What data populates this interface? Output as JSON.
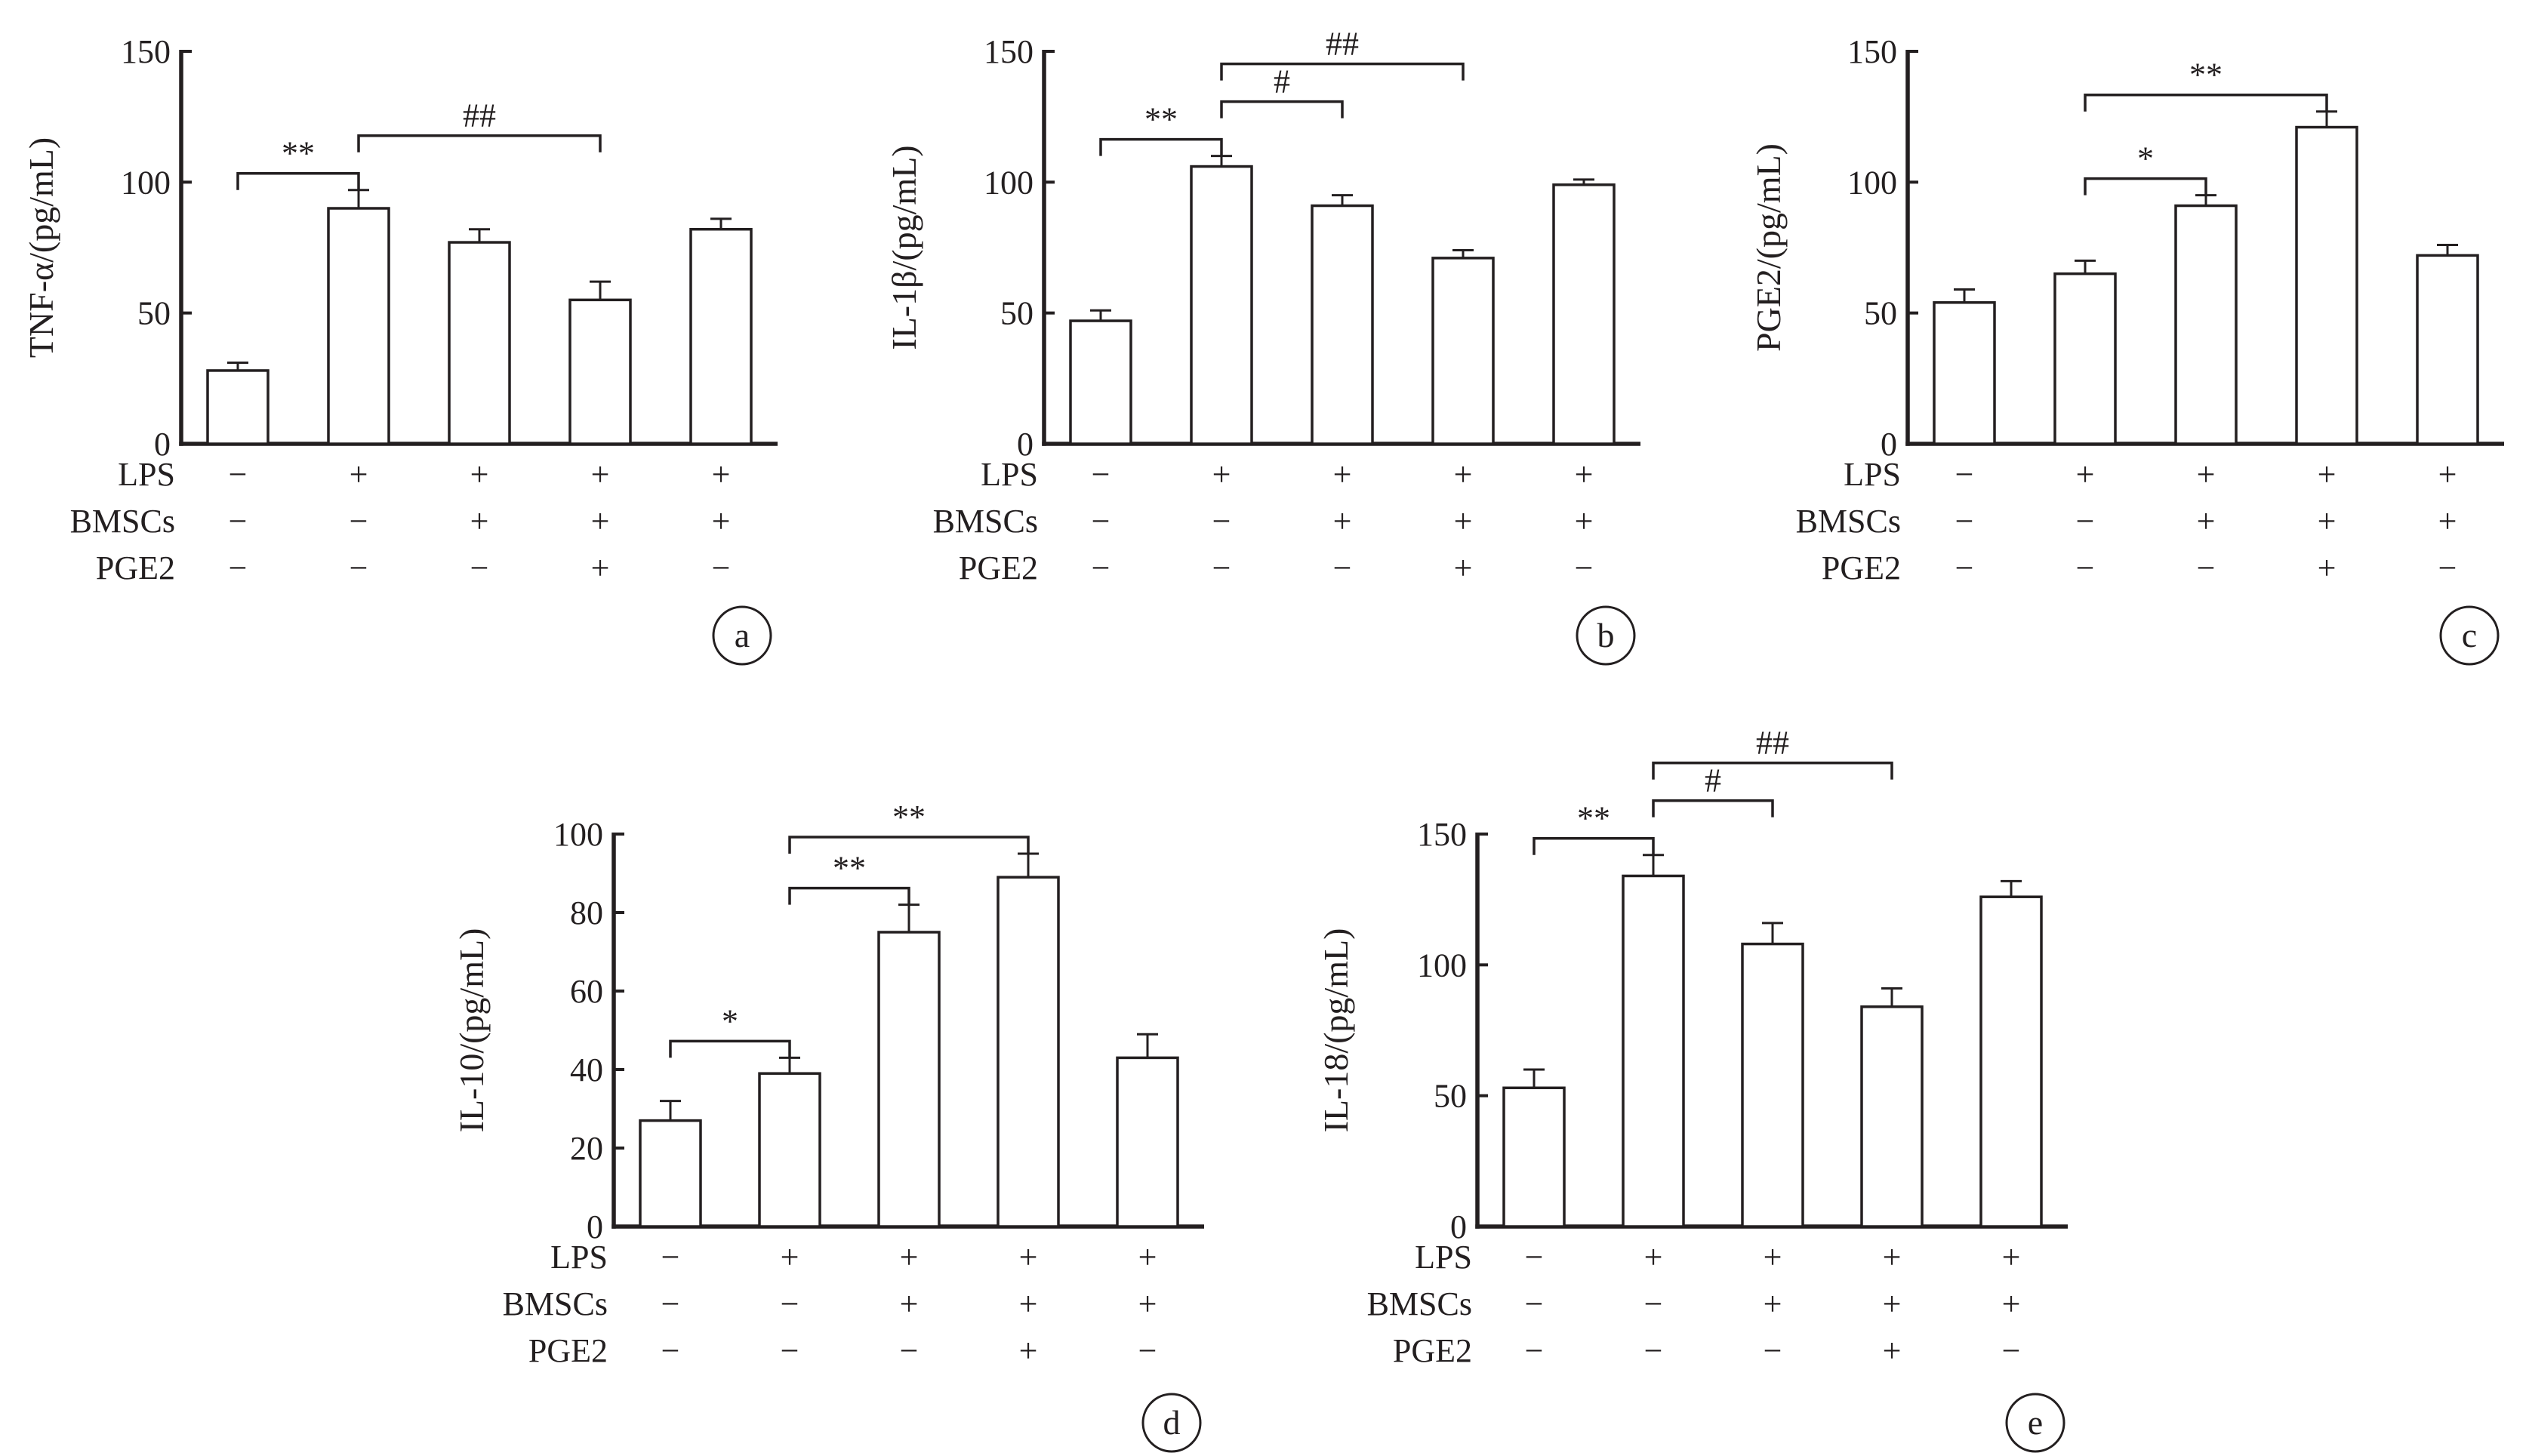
{
  "condition_rows": {
    "labels": [
      "LPS",
      "BMSCs",
      "PGE2"
    ],
    "values": [
      [
        "−",
        "+",
        "+",
        "+",
        "+"
      ],
      [
        "−",
        "−",
        "+",
        "+",
        "+"
      ],
      [
        "−",
        "−",
        "−",
        "+",
        "−"
      ]
    ]
  },
  "chart_data": [
    {
      "type": "bar",
      "panel": "a",
      "ylabel": "TNF-α/(pg/mL)",
      "ylim": [
        0,
        150
      ],
      "yticks": [
        0,
        50,
        100,
        150
      ],
      "values": [
        28,
        90,
        77,
        55,
        82
      ],
      "errors": [
        3,
        7,
        5,
        7,
        4
      ],
      "comparisons": [
        {
          "from": 0,
          "to": 1,
          "label": "**"
        },
        {
          "from": 1,
          "to": 3,
          "label": "##"
        }
      ]
    },
    {
      "type": "bar",
      "panel": "b",
      "ylabel": "IL-1β/(pg/mL)",
      "ylim": [
        0,
        150
      ],
      "yticks": [
        0,
        50,
        100,
        150
      ],
      "values": [
        47,
        106,
        91,
        71,
        99
      ],
      "errors": [
        4,
        4,
        4,
        3,
        2
      ],
      "comparisons": [
        {
          "from": 0,
          "to": 1,
          "label": "**"
        },
        {
          "from": 1,
          "to": 2,
          "label": "#"
        },
        {
          "from": 1,
          "to": 3,
          "label": "##"
        }
      ]
    },
    {
      "type": "bar",
      "panel": "c",
      "ylabel": "PGE2/(pg/mL)",
      "ylim": [
        0,
        150
      ],
      "yticks": [
        0,
        50,
        100,
        150
      ],
      "values": [
        54,
        65,
        91,
        121,
        72
      ],
      "errors": [
        5,
        5,
        4,
        6,
        4
      ],
      "comparisons": [
        {
          "from": 1,
          "to": 2,
          "label": "*"
        },
        {
          "from": 1,
          "to": 3,
          "label": "**"
        }
      ]
    },
    {
      "type": "bar",
      "panel": "d",
      "ylabel": "IL-10/(pg/mL)",
      "ylim": [
        0,
        100
      ],
      "yticks": [
        0,
        20,
        40,
        60,
        80,
        100
      ],
      "values": [
        27,
        39,
        75,
        89,
        43
      ],
      "errors": [
        5,
        4,
        7,
        6,
        6
      ],
      "comparisons": [
        {
          "from": 0,
          "to": 1,
          "label": "*"
        },
        {
          "from": 1,
          "to": 2,
          "label": "**"
        },
        {
          "from": 1,
          "to": 3,
          "label": "**"
        }
      ]
    },
    {
      "type": "bar",
      "panel": "e",
      "ylabel": "IL-18/(pg/mL)",
      "ylim": [
        0,
        150
      ],
      "yticks": [
        0,
        50,
        100,
        150
      ],
      "values": [
        53,
        134,
        108,
        84,
        126
      ],
      "errors": [
        7,
        8,
        8,
        7,
        6
      ],
      "comparisons": [
        {
          "from": 0,
          "to": 1,
          "label": "**"
        },
        {
          "from": 1,
          "to": 2,
          "label": "#"
        },
        {
          "from": 1,
          "to": 3,
          "label": "##"
        }
      ]
    }
  ]
}
